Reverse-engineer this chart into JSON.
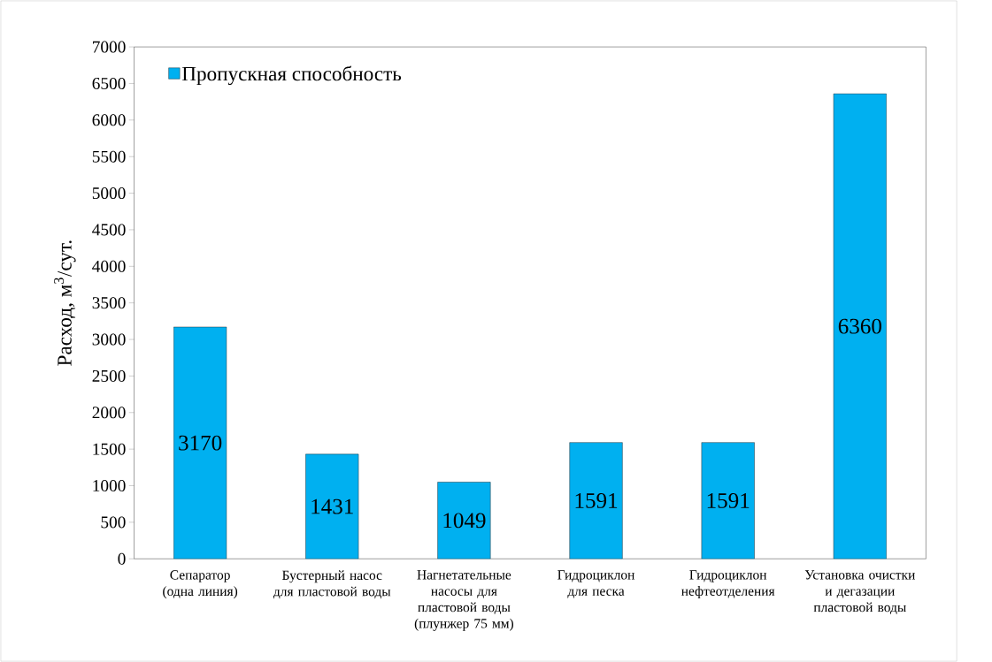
{
  "chart_data": {
    "type": "bar",
    "ylabel": "Расход,  м$^{3}$/сут.",
    "categories": [
      "Сепаратор (одна линия)",
      "Бустерный насос для пластовой воды",
      "Нагнетательные насосы для пластовой воды (плунжер 75 мм)",
      "Гидроциклон для песка",
      "Гидроциклон нефтеотделения",
      "Установка очистки и дегазации пластовой воды"
    ],
    "series": [
      {
        "name": "Пропускная способность",
        "color": "#00b0f0",
        "values": [
          3170,
          1431,
          1049,
          1591,
          1591,
          6360
        ]
      }
    ],
    "value_labels": [
      "3170",
      "1431",
      "1049",
      "1591",
      "1591",
      "6360"
    ],
    "ylim": [
      0,
      7000
    ],
    "yticks": [
      0,
      500,
      1000,
      1500,
      2000,
      2500,
      3000,
      3500,
      4000,
      4500,
      5000,
      5500,
      6000,
      6500,
      7000
    ],
    "grid": false,
    "legend": "top left"
  }
}
